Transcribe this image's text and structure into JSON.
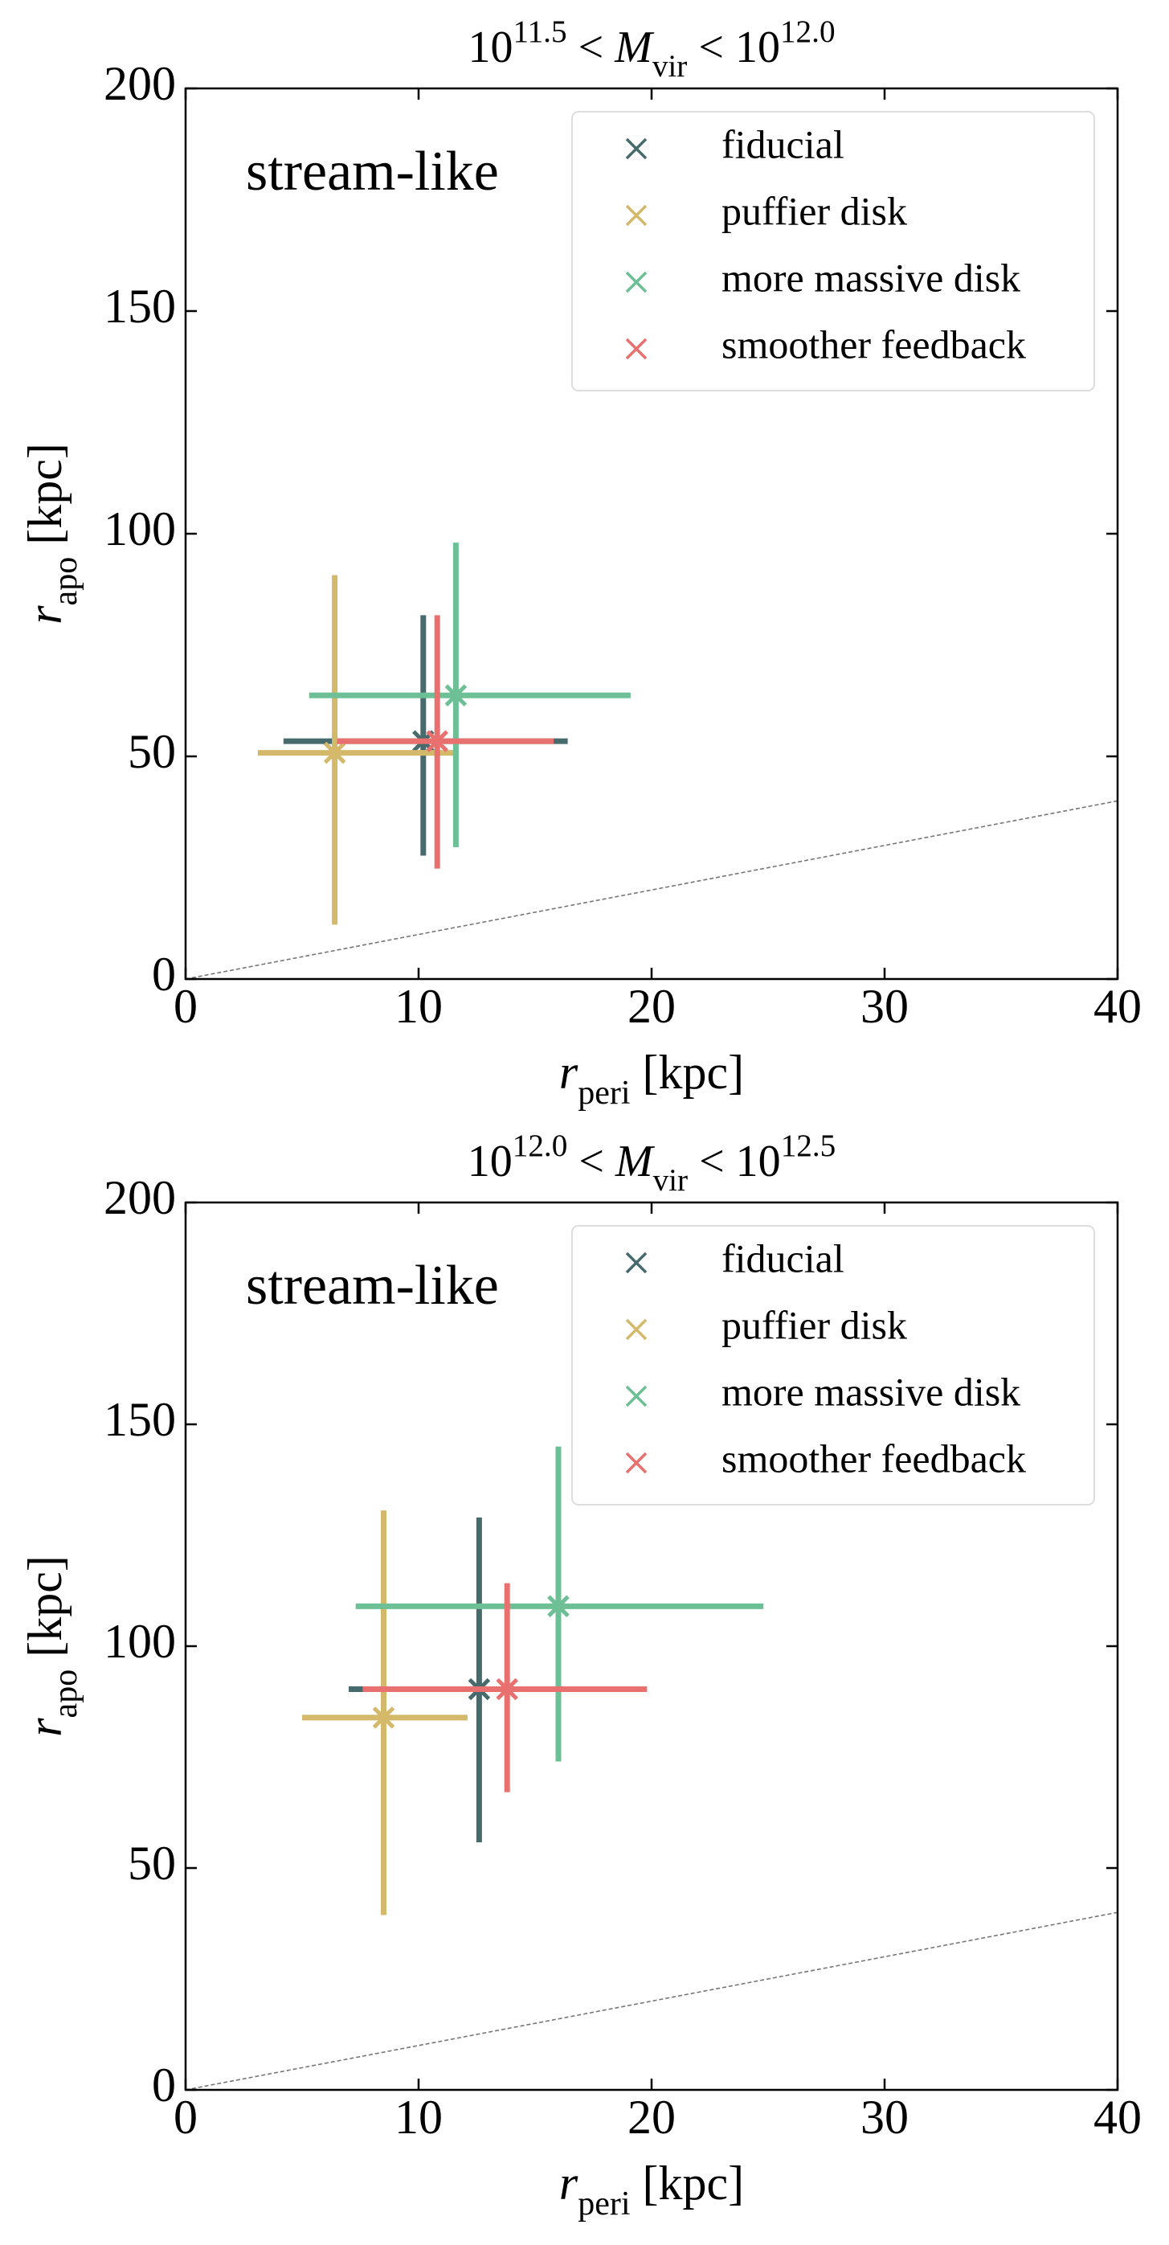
{
  "chart_data": [
    {
      "type": "errorbar",
      "title": [
        {
          "text": "10"
        },
        {
          "text": "11.5",
          "sup": true
        },
        {
          "text": " < "
        },
        {
          "text": "M",
          "italic": true
        },
        {
          "text": "vir",
          "sub": true
        },
        {
          "text": " < 10"
        },
        {
          "text": "12.0",
          "sup": true
        }
      ],
      "xlabel": [
        {
          "text": "r",
          "italic": true
        },
        {
          "text": "peri",
          "sub": true
        },
        {
          "text": " [kpc]"
        }
      ],
      "ylabel": [
        {
          "text": "r",
          "italic": true
        },
        {
          "text": "apo",
          "sub": true
        },
        {
          "text": " [kpc]"
        }
      ],
      "annotation": "stream-like",
      "xlim": [
        0,
        40
      ],
      "ylim": [
        0,
        200
      ],
      "xticks": [
        0,
        10,
        20,
        30,
        40
      ],
      "yticks": [
        0,
        50,
        100,
        150,
        200
      ],
      "legend": "upper right",
      "series": [
        {
          "name": "fiducial",
          "color": "#476b6c",
          "x": [
            10.2
          ],
          "y": [
            53.4
          ],
          "xerr_low": [
            6.0
          ],
          "xerr_high": [
            6.2
          ],
          "yerr_low": [
            25.7
          ],
          "yerr_high": [
            28.3
          ]
        },
        {
          "name": "puffier disk",
          "color": "#d4b96b",
          "x": [
            6.4
          ],
          "y": [
            50.8
          ],
          "xerr_low": [
            3.3
          ],
          "xerr_high": [
            5.2
          ],
          "yerr_low": [
            38.6
          ],
          "yerr_high": [
            39.9
          ]
        },
        {
          "name": "more massive disk",
          "color": "#6dbf96",
          "x": [
            11.6
          ],
          "y": [
            63.7
          ],
          "xerr_low": [
            6.3
          ],
          "xerr_high": [
            7.5
          ],
          "yerr_low": [
            34.1
          ],
          "yerr_high": [
            34.3
          ]
        },
        {
          "name": "smoother feedback",
          "color": "#e8706e",
          "x": [
            10.8
          ],
          "y": [
            53.4
          ],
          "xerr_low": [
            4.3
          ],
          "xerr_high": [
            5.0
          ],
          "yerr_low": [
            28.6
          ],
          "yerr_high": [
            28.3
          ]
        }
      ]
    },
    {
      "type": "errorbar",
      "title": [
        {
          "text": "10"
        },
        {
          "text": "12.0",
          "sup": true
        },
        {
          "text": " < "
        },
        {
          "text": "M",
          "italic": true
        },
        {
          "text": "vir",
          "sub": true
        },
        {
          "text": " < 10"
        },
        {
          "text": "12.5",
          "sup": true
        }
      ],
      "xlabel": [
        {
          "text": "r",
          "italic": true
        },
        {
          "text": "peri",
          "sub": true
        },
        {
          "text": " [kpc]"
        }
      ],
      "ylabel": [
        {
          "text": "r",
          "italic": true
        },
        {
          "text": "apo",
          "sub": true
        },
        {
          "text": " [kpc]"
        }
      ],
      "annotation": "stream-like",
      "xlim": [
        0,
        40
      ],
      "ylim": [
        0,
        200
      ],
      "xticks": [
        0,
        10,
        20,
        30,
        40
      ],
      "yticks": [
        0,
        50,
        100,
        150,
        200
      ],
      "legend": "upper right",
      "series": [
        {
          "name": "fiducial",
          "color": "#476b6c",
          "x": [
            12.6
          ],
          "y": [
            90.3
          ],
          "xerr_low": [
            5.6
          ],
          "xerr_high": [
            5.5
          ],
          "yerr_low": [
            34.5
          ],
          "yerr_high": [
            38.7
          ]
        },
        {
          "name": "puffier disk",
          "color": "#d4b96b",
          "x": [
            8.5
          ],
          "y": [
            83.9
          ],
          "xerr_low": [
            3.5
          ],
          "xerr_high": [
            3.6
          ],
          "yerr_low": [
            44.5
          ],
          "yerr_high": [
            46.7
          ]
        },
        {
          "name": "more massive disk",
          "color": "#6dbf96",
          "x": [
            16.0
          ],
          "y": [
            109
          ],
          "xerr_low": [
            8.7
          ],
          "xerr_high": [
            8.8
          ],
          "yerr_low": [
            35
          ],
          "yerr_high": [
            36
          ]
        },
        {
          "name": "smoother feedback",
          "color": "#e8706e",
          "x": [
            13.8
          ],
          "y": [
            90.3
          ],
          "xerr_low": [
            6.2
          ],
          "xerr_high": [
            6.0
          ],
          "yerr_low": [
            23.2
          ],
          "yerr_high": [
            23.9
          ]
        }
      ]
    }
  ]
}
